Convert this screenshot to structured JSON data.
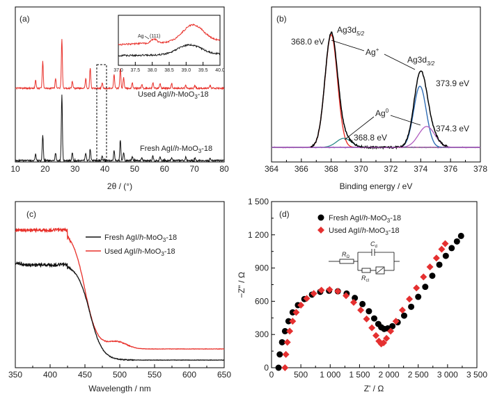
{
  "chart_data": [
    {
      "type": "line",
      "panel_label": "(a)",
      "xlabel": "2θ / (°)",
      "xlim": [
        10,
        80
      ],
      "xticks": [
        "10",
        "20",
        "30",
        "40",
        "50",
        "60",
        "70",
        "80"
      ],
      "series": [
        {
          "name": "Used AgI/h-MoO3-18",
          "color": "#e8302a",
          "peaks": [
            [
              16.8,
              0.18
            ],
            [
              19.2,
              0.55
            ],
            [
              23.5,
              0.2
            ],
            [
              25.6,
              1.0
            ],
            [
              29.1,
              0.15
            ],
            [
              33.6,
              0.2
            ],
            [
              35.1,
              0.42
            ],
            [
              39.1,
              0.12
            ],
            [
              43.1,
              0.28
            ],
            [
              45.2,
              0.42
            ],
            [
              46.3,
              0.22
            ],
            [
              49.2,
              0.12
            ],
            [
              52.4,
              0.08
            ],
            [
              56.1,
              0.12
            ],
            [
              58.5,
              0.1
            ],
            [
              62.4,
              0.1
            ],
            [
              67.1,
              0.08
            ],
            [
              70.2,
              0.06
            ],
            [
              75.3,
              0.05
            ]
          ]
        },
        {
          "name": "Fresh AgI/h-MoO3-18",
          "color": "#111111",
          "peaks": [
            [
              16.8,
              0.1
            ],
            [
              19.2,
              0.38
            ],
            [
              23.5,
              0.12
            ],
            [
              25.6,
              1.0
            ],
            [
              29.1,
              0.12
            ],
            [
              33.6,
              0.12
            ],
            [
              35.1,
              0.18
            ],
            [
              39.1,
              0.08
            ],
            [
              43.1,
              0.16
            ],
            [
              45.2,
              0.32
            ],
            [
              46.3,
              0.12
            ],
            [
              49.2,
              0.06
            ],
            [
              52.4,
              0.05
            ],
            [
              56.1,
              0.07
            ],
            [
              58.5,
              0.06
            ],
            [
              62.4,
              0.05
            ],
            [
              67.1,
              0.05
            ],
            [
              70.2,
              0.04
            ],
            [
              75.3,
              0.04
            ]
          ]
        }
      ],
      "inset": {
        "xlim": [
          37.0,
          40.0
        ],
        "xticks": [
          "37.0",
          "37.5",
          "38.0",
          "38.5",
          "39.0",
          "39.5",
          "40.0"
        ],
        "annotation": "Ag",
        "annotation_hkl": "(111)"
      }
    },
    {
      "type": "line",
      "panel_label": "(b)",
      "xlabel": "Binding energy / eV",
      "xlim": [
        364,
        378
      ],
      "xticks": [
        "364",
        "366",
        "368",
        "370",
        "372",
        "374",
        "376",
        "378"
      ],
      "series": [
        {
          "name": "envelope",
          "color": "#000000"
        },
        {
          "name": "Ag+ 3d5/2",
          "color": "#e8302a",
          "center": 368.0
        },
        {
          "name": "Ag+ 3d3/2",
          "color": "#2f6db5",
          "center": 373.9
        },
        {
          "name": "Ag0 3d5/2",
          "color": "#2e8b8b",
          "center": 368.8
        },
        {
          "name": "Ag0 3d3/2",
          "color": "#b05cc0",
          "center": 374.3
        }
      ],
      "labels": {
        "ag3d52_main": "Ag3d",
        "ag3d52_orbital": "5/2",
        "ag3d32_main": "Ag3d",
        "ag3d32_orbital": "3/2",
        "agplus": "Ag",
        "agplus_sup": "+",
        "ag0": "Ag",
        "ag0_sup": "0",
        "e368_0": "368.0 eV",
        "e373_9": "373.9 eV",
        "e374_3": "374.3 eV",
        "e368_8": "368.8 eV"
      }
    },
    {
      "type": "line",
      "panel_label": "(c)",
      "xlabel": "Wavelength / nm",
      "xlim": [
        350,
        650
      ],
      "xticks": [
        "350",
        "400",
        "450",
        "500",
        "550",
        "600",
        "650"
      ],
      "legend_position": "top-right",
      "series": [
        {
          "name": "Fresh AgI/h-MoO3-18",
          "color": "#111111"
        },
        {
          "name": "Used AgI/h-MoO3-18",
          "color": "#e8302a"
        }
      ]
    },
    {
      "type": "scatter",
      "panel_label": "(d)",
      "xlabel": "Z' / Ω",
      "ylabel": "−Z\" / Ω",
      "xlim": [
        0,
        3500
      ],
      "ylim": [
        0,
        1500
      ],
      "xticks": [
        "0",
        "500",
        "1 000",
        "1 500",
        "2 000",
        "2 500",
        "3 000",
        "3 500"
      ],
      "yticks": [
        "0",
        "300",
        "600",
        "900",
        "1 200",
        "1 500"
      ],
      "legend_position": "top-left",
      "circuit_labels": {
        "rs": "R",
        "rs_sub": "Ω",
        "cd": "C",
        "cd_sub": "d",
        "rct": "R",
        "rct_sub": "ct"
      },
      "series": [
        {
          "name": "Fresh AgI/h-MoO3-18",
          "color": "#000000",
          "marker": "circle",
          "x": [
            120,
            140,
            180,
            230,
            290,
            360,
            450,
            560,
            690,
            830,
            980,
            1130,
            1280,
            1420,
            1550,
            1660,
            1750,
            1820,
            1870,
            1920,
            1980,
            2060,
            2150,
            2260,
            2380,
            2500,
            2620,
            2740,
            2860,
            2970,
            3070,
            3160,
            3230
          ],
          "y": [
            0,
            120,
            230,
            330,
            420,
            500,
            565,
            620,
            660,
            685,
            695,
            690,
            670,
            630,
            575,
            510,
            445,
            395,
            365,
            350,
            355,
            375,
            410,
            470,
            550,
            640,
            730,
            830,
            930,
            1010,
            1080,
            1140,
            1190
          ]
        },
        {
          "name": "Used AgI/h-MoO3-18",
          "color": "#e53030",
          "marker": "diamond",
          "x": [
            230,
            245,
            270,
            310,
            360,
            420,
            500,
            600,
            720,
            850,
            990,
            1130,
            1270,
            1400,
            1520,
            1620,
            1710,
            1780,
            1830,
            1870,
            1910,
            1960,
            2030,
            2120,
            2230,
            2350,
            2470,
            2590,
            2700,
            2810,
            2900,
            2960
          ],
          "y": [
            0,
            120,
            230,
            330,
            420,
            500,
            565,
            625,
            670,
            700,
            705,
            690,
            650,
            590,
            520,
            440,
            360,
            290,
            240,
            215,
            225,
            265,
            330,
            420,
            520,
            620,
            720,
            820,
            910,
            990,
            1070,
            1120
          ]
        }
      ]
    }
  ]
}
